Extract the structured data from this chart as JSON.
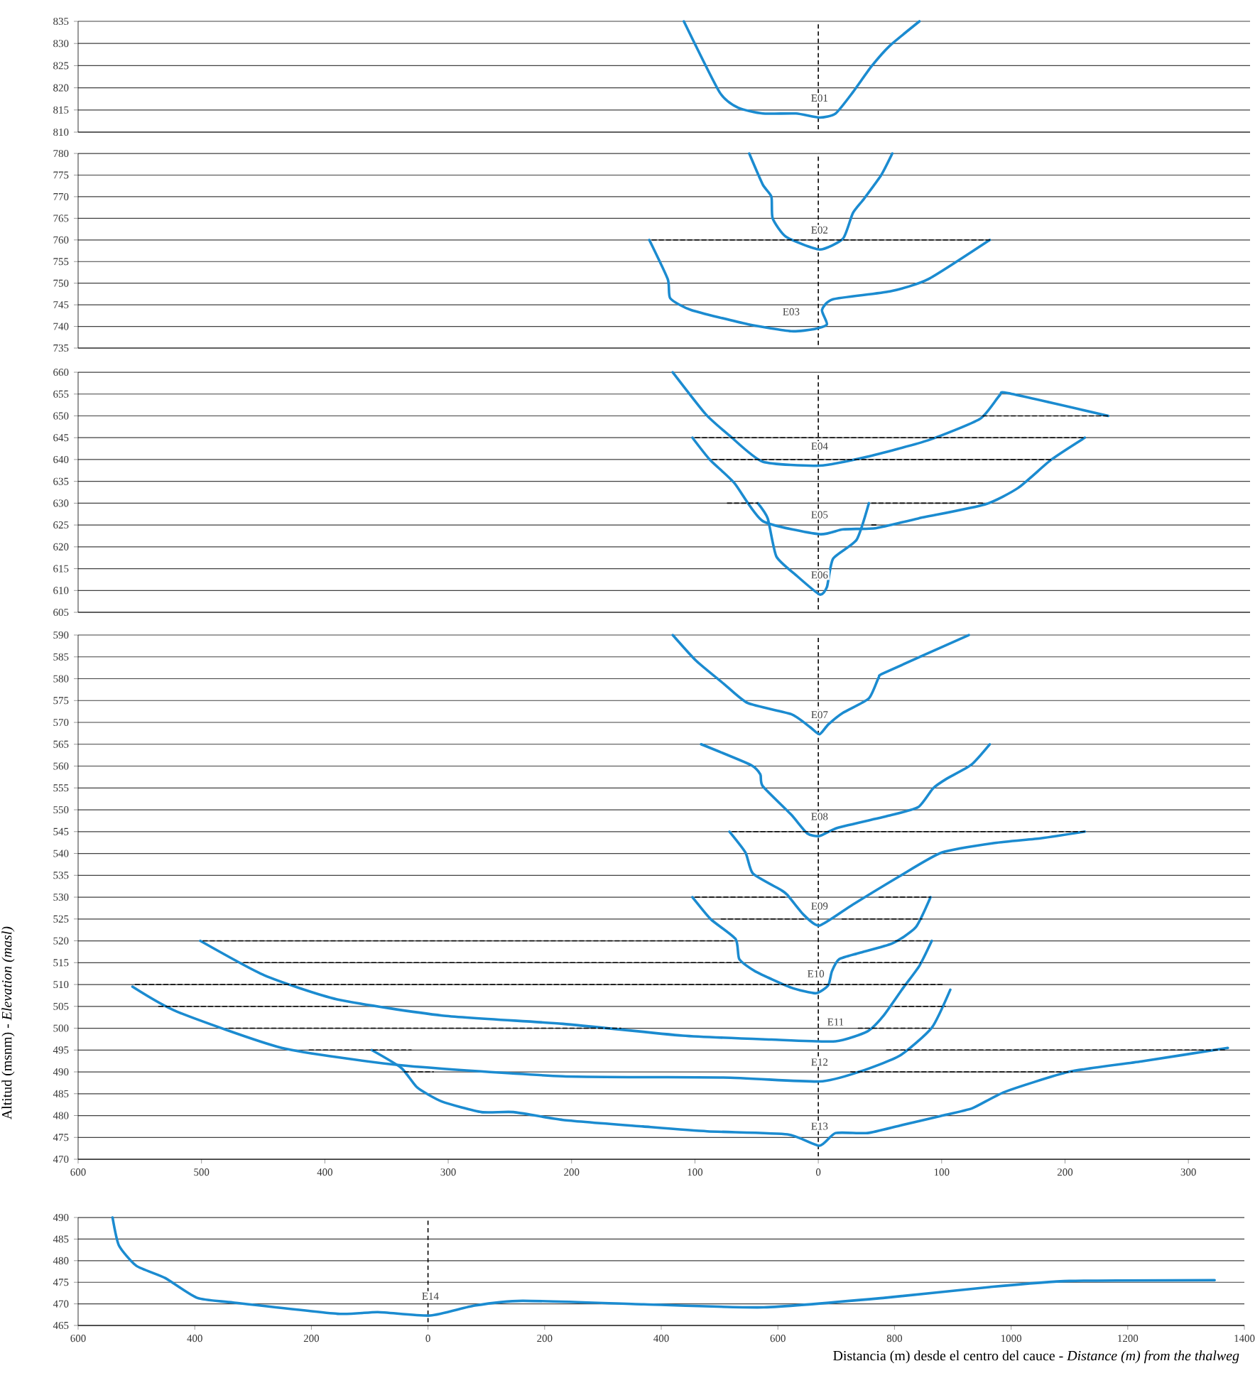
{
  "chart_data": [
    {
      "type": "line",
      "xlim": [
        -600,
        350
      ],
      "ylim": [
        810,
        835
      ],
      "yticks": [
        810,
        815,
        820,
        825,
        830,
        835
      ],
      "grid": "y",
      "tick_labels": "y",
      "ref_lines": [
        {
          "axis": "x",
          "value": 0,
          "line_style": "dashed",
          "color": "#000000"
        }
      ],
      "series": [
        {
          "name": "E01",
          "color": "#1b8bd0",
          "x": [
            -109,
            -80,
            -65,
            -45,
            -18,
            1,
            14,
            28,
            43,
            58,
            82
          ],
          "values": [
            835,
            819,
            815.5,
            814.2,
            814.2,
            813.3,
            814.2,
            819,
            824.8,
            829.5,
            835
          ]
        }
      ]
    },
    {
      "type": "line",
      "xlim": [
        -600,
        350
      ],
      "ylim": [
        735,
        780
      ],
      "yticks": [
        735,
        740,
        745,
        750,
        755,
        760,
        765,
        770,
        775,
        780
      ],
      "grid": "y",
      "tick_labels": "y",
      "ref_lines": [
        {
          "axis": "x",
          "value": 0,
          "line_style": "dashed",
          "color": "#000000"
        }
      ],
      "series": [
        {
          "type": "line",
          "line_style": "dashed",
          "color": "#000000",
          "x": [
            -137,
            139
          ],
          "values": [
            760,
            760
          ]
        },
        {
          "name": "E02",
          "color": "#1b8bd0",
          "x": [
            -56,
            -45,
            -38,
            -37,
            -26,
            1,
            20,
            28,
            37,
            51,
            60
          ],
          "values": [
            780,
            772.8,
            770,
            765,
            760.7,
            757.8,
            760.3,
            766.2,
            769.5,
            775,
            780
          ]
        },
        {
          "name": "E03",
          "color": "#1b8bd0",
          "x": [
            -137,
            -122,
            -120,
            -103,
            -57,
            -22,
            -3,
            7,
            3,
            12,
            58,
            89,
            139
          ],
          "values": [
            760,
            750.9,
            746.5,
            743.8,
            740.5,
            738.9,
            739.4,
            740.5,
            743.8,
            746.3,
            748.1,
            750.9,
            760
          ]
        }
      ]
    },
    {
      "type": "line",
      "xlim": [
        -600,
        350
      ],
      "ylim": [
        605,
        660
      ],
      "yticks": [
        605,
        610,
        615,
        620,
        625,
        630,
        635,
        640,
        645,
        650,
        655,
        660
      ],
      "grid": "y",
      "tick_labels": "y",
      "ref_lines": [
        {
          "axis": "x",
          "value": 0,
          "line_style": "dashed",
          "color": "#000000"
        }
      ],
      "series": [
        {
          "type": "line",
          "line_style": "dashed",
          "color": "#000000",
          "x": [
            131,
            235
          ],
          "values": [
            650,
            650
          ]
        },
        {
          "type": "line",
          "line_style": "dashed",
          "color": "#000000",
          "x": [
            -102,
            216
          ],
          "values": [
            645,
            645
          ]
        },
        {
          "type": "line",
          "line_style": "dashed",
          "color": "#000000",
          "x": [
            -88,
            189
          ],
          "values": [
            640,
            640
          ]
        },
        {
          "type": "line",
          "line_style": "dashed",
          "color": "#000000",
          "x": [
            -76,
            -49
          ],
          "values": [
            630,
            630
          ]
        },
        {
          "type": "line",
          "line_style": "dashed",
          "color": "#000000",
          "x": [
            41,
            135
          ],
          "values": [
            630,
            630
          ]
        },
        {
          "type": "line",
          "line_style": "dashed",
          "color": "#000000",
          "x": [
            41,
            49
          ],
          "values": [
            625,
            625
          ]
        },
        {
          "name": "E04",
          "color": "#1b8bd0",
          "x": [
            -118,
            -91,
            -72,
            -45,
            1,
            39,
            89,
            131,
            147,
            154,
            235
          ],
          "values": [
            660,
            650.3,
            645.5,
            639.5,
            638.6,
            640.6,
            644.4,
            649.3,
            654.7,
            655.2,
            650
          ]
        },
        {
          "name": "E05",
          "color": "#1b8bd0",
          "x": [
            -102,
            -88,
            -68,
            -45,
            1,
            20,
            47,
            81,
            135,
            162,
            189,
            216
          ],
          "values": [
            645,
            640,
            634.6,
            625.9,
            622.9,
            624,
            624.3,
            626.5,
            629.7,
            633.5,
            640,
            645
          ]
        },
        {
          "name": "E06",
          "color": "#1b8bd0",
          "x": [
            -49,
            -41,
            -34,
            -18,
            1,
            7,
            12,
            31,
            41
          ],
          "values": [
            630,
            626.5,
            617.8,
            613.5,
            609.1,
            610.8,
            617.3,
            621.6,
            630
          ]
        }
      ]
    },
    {
      "type": "line",
      "xlim": [
        -600,
        350
      ],
      "ylim": [
        470,
        590
      ],
      "yticks": [
        470,
        475,
        480,
        485,
        490,
        495,
        500,
        505,
        510,
        515,
        520,
        525,
        530,
        535,
        540,
        545,
        550,
        555,
        560,
        565,
        570,
        575,
        580,
        585,
        590
      ],
      "xticks": [
        {
          "value": -600,
          "label": "600"
        },
        {
          "value": -500,
          "label": "500"
        },
        {
          "value": -400,
          "label": "400"
        },
        {
          "value": -300,
          "label": "300"
        },
        {
          "value": -200,
          "label": "200"
        },
        {
          "value": -100,
          "label": "100"
        },
        0,
        100,
        200,
        300
      ],
      "ylabel": "Altitud (msnm) - *Elevation (masl)*",
      "grid": "y",
      "ref_lines": [
        {
          "axis": "x",
          "value": 0,
          "line_style": "dashed",
          "color": "#000000"
        }
      ],
      "series": [
        {
          "type": "line",
          "line_style": "dashed",
          "color": "#000000",
          "x": [
            -72,
            216
          ],
          "values": [
            545,
            545
          ]
        },
        {
          "type": "line",
          "line_style": "dashed",
          "color": "#000000",
          "x": [
            -102,
            -25
          ],
          "values": [
            530,
            530
          ]
        },
        {
          "type": "line",
          "line_style": "dashed",
          "color": "#000000",
          "x": [
            47,
            91
          ],
          "values": [
            530,
            530
          ]
        },
        {
          "type": "line",
          "line_style": "dashed",
          "color": "#000000",
          "x": [
            -81,
            -12
          ],
          "values": [
            525,
            525
          ]
        },
        {
          "type": "line",
          "line_style": "dashed",
          "color": "#000000",
          "x": [
            17,
            84
          ],
          "values": [
            525,
            525
          ]
        },
        {
          "type": "line",
          "line_style": "dashed",
          "color": "#000000",
          "x": [
            -501,
            -67
          ],
          "values": [
            520,
            520
          ]
        },
        {
          "type": "line",
          "line_style": "dashed",
          "color": "#000000",
          "x": [
            60,
            91
          ],
          "values": [
            520,
            520
          ]
        },
        {
          "type": "line",
          "line_style": "dashed",
          "color": "#000000",
          "x": [
            -468,
            -64
          ],
          "values": [
            515,
            515
          ]
        },
        {
          "type": "line",
          "line_style": "dashed",
          "color": "#000000",
          "x": [
            17,
            83
          ],
          "values": [
            515,
            515
          ]
        },
        {
          "type": "line",
          "line_style": "dashed",
          "color": "#000000",
          "x": [
            -556,
            102
          ],
          "values": [
            510,
            510
          ]
        },
        {
          "type": "line",
          "line_style": "dashed",
          "color": "#000000",
          "x": [
            -537,
            -380
          ],
          "values": [
            505,
            505
          ]
        },
        {
          "type": "line",
          "line_style": "dashed",
          "color": "#000000",
          "x": [
            60,
            103
          ],
          "values": [
            505,
            505
          ]
        },
        {
          "type": "line",
          "line_style": "dashed",
          "color": "#000000",
          "x": [
            -480,
            -160
          ],
          "values": [
            500,
            500
          ]
        },
        {
          "type": "line",
          "line_style": "dashed",
          "color": "#000000",
          "x": [
            30,
            90
          ],
          "values": [
            500,
            500
          ]
        },
        {
          "type": "line",
          "line_style": "dashed",
          "color": "#000000",
          "x": [
            -415,
            -330
          ],
          "values": [
            495,
            495
          ]
        },
        {
          "type": "line",
          "line_style": "dashed",
          "color": "#000000",
          "x": [
            53,
            330
          ],
          "values": [
            495,
            495
          ]
        },
        {
          "type": "line",
          "line_style": "dashed",
          "color": "#000000",
          "x": [
            -338,
            -312
          ],
          "values": [
            490,
            490
          ]
        },
        {
          "type": "line",
          "line_style": "dashed",
          "color": "#000000",
          "x": [
            24,
            206
          ],
          "values": [
            490,
            490
          ]
        },
        {
          "name": "E07",
          "color": "#1b8bd0",
          "x": [
            -118,
            -99,
            -76,
            -57,
            -22,
            -7,
            1,
            8,
            20,
            41,
            49,
            54,
            122
          ],
          "values": [
            590,
            584.1,
            578.7,
            574.4,
            571.9,
            569,
            567.3,
            569.5,
            572.2,
            575.5,
            580.3,
            581.4,
            590
          ]
        },
        {
          "name": "E08",
          "color": "#1b8bd0",
          "x": [
            -95,
            -55,
            -47,
            -45,
            -22,
            -9,
            1,
            16,
            58,
            81,
            93,
            104,
            124,
            139
          ],
          "values": [
            565,
            560.3,
            558.1,
            555.4,
            548.9,
            544.6,
            544,
            545.9,
            548.7,
            550.6,
            554.9,
            557.1,
            560.3,
            565
          ]
        },
        {
          "name": "E09",
          "color": "#1b8bd0",
          "x": [
            -72,
            -59,
            -53,
            -30,
            -25,
            -12,
            1,
            28,
            66,
            100,
            143,
            181,
            216
          ],
          "values": [
            545,
            540.2,
            535.4,
            531.6,
            530.5,
            526,
            523.5,
            528.3,
            534.8,
            540.2,
            542.4,
            543.5,
            545
          ]
        },
        {
          "name": "E10",
          "color": "#1b8bd0",
          "x": [
            -102,
            -87,
            -67,
            -64,
            -51,
            -22,
            -2,
            8,
            11,
            17,
            33,
            60,
            79,
            91
          ],
          "values": [
            530,
            524.9,
            520.4,
            515.8,
            513,
            509.3,
            508,
            509.8,
            513,
            515.8,
            517.2,
            519.4,
            523.1,
            530
          ]
        },
        {
          "name": "E11",
          "color": "#1b8bd0",
          "x": [
            -501,
            -449,
            -390,
            -305,
            -207,
            -110,
            -38,
            14,
            40,
            53,
            69,
            82,
            92
          ],
          "values": [
            520,
            512.1,
            506.6,
            502.9,
            501,
            498.3,
            497.4,
            497,
            499.3,
            502.9,
            509.3,
            514.3,
            520
          ]
        },
        {
          "name": "E12",
          "color": "#1b8bd0",
          "x": [
            -556,
            -520,
            -435,
            -338,
            -207,
            -77,
            1,
            33,
            66,
            92,
            107
          ],
          "values": [
            509.5,
            503.8,
            495.5,
            491.5,
            489,
            488.7,
            487.8,
            490,
            493.7,
            500.1,
            508.8
          ]
        },
        {
          "name": "E13",
          "color": "#1b8bd0",
          "x": [
            -362,
            -338,
            -325,
            -305,
            -273,
            -247,
            -207,
            -142,
            -90,
            -25,
            1,
            14,
            40,
            66,
            99,
            125,
            151,
            203,
            262,
            332
          ],
          "values": [
            495,
            490.9,
            486.4,
            483.2,
            480.8,
            480.8,
            479,
            477.5,
            476.4,
            475.7,
            473.1,
            476,
            476,
            477.7,
            479.9,
            481.7,
            485.4,
            490,
            492.4,
            495.5
          ]
        }
      ]
    },
    {
      "type": "line",
      "xlim": [
        -600,
        1400
      ],
      "ylim": [
        465,
        490
      ],
      "yticks": [
        465,
        470,
        475,
        480,
        485,
        490
      ],
      "xticks": [
        {
          "value": -600,
          "label": "600"
        },
        {
          "value": -400,
          "label": "400"
        },
        {
          "value": -200,
          "label": "200"
        },
        0,
        200,
        400,
        600,
        800,
        1000,
        1200,
        1400
      ],
      "xlabel": "Distancia (m) desde el centro del cauce - *Distance (m) from the thalweg*",
      "grid": "y",
      "ref_lines": [
        {
          "axis": "x",
          "value": 0,
          "line_style": "dashed",
          "color": "#000000"
        }
      ],
      "series": [
        {
          "name": "E14",
          "color": "#1b8bd0",
          "x": [
            -541,
            -530,
            -500,
            -451,
            -396,
            -334,
            -155,
            -86,
            4,
            80,
            162,
            370,
            576,
            783,
            963,
            1100,
            1349
          ],
          "values": [
            490,
            483.5,
            478.8,
            476,
            471.4,
            470.3,
            467.7,
            468.1,
            467.3,
            469.6,
            470.7,
            469.9,
            469.2,
            471.4,
            473.9,
            475.3,
            475.5
          ]
        }
      ]
    }
  ]
}
